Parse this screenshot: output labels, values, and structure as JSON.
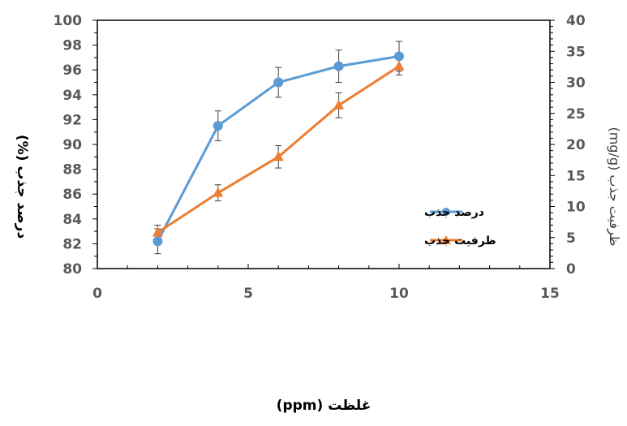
{
  "chart_data": {
    "type": "line",
    "title": "",
    "xlabel": "غلظت (ppm)",
    "ylabel": "درصد جذب (%)",
    "y2label": "ظرفیت جذب (mg/g)",
    "xlim": [
      0,
      15
    ],
    "ylim": [
      80,
      100
    ],
    "y2lim": [
      0,
      40
    ],
    "x_ticks": [
      "0",
      "5",
      "10",
      "15"
    ],
    "y_ticks": [
      "80",
      "82",
      "84",
      "86",
      "88",
      "90",
      "92",
      "94",
      "96",
      "98",
      "100"
    ],
    "y2_ticks": [
      "0",
      "5",
      "10",
      "15",
      "20",
      "25",
      "30",
      "35",
      "40"
    ],
    "grid": false,
    "legend_position": "center-right",
    "series": [
      {
        "name": "درصد جذب",
        "axis": "left",
        "marker": "circle",
        "color": "#5B9BD5",
        "x": [
          2,
          4,
          6,
          8,
          10
        ],
        "y": [
          82.2,
          91.5,
          95.0,
          96.3,
          97.1
        ],
        "error": [
          1.0,
          1.2,
          1.2,
          1.3,
          1.2
        ]
      },
      {
        "name": "ظرفیت جذب",
        "axis": "right",
        "marker": "triangle",
        "color": "#ED7D31",
        "x": [
          2,
          4,
          6,
          8,
          10
        ],
        "y": [
          5.8,
          12.2,
          18.0,
          26.3,
          32.6
        ],
        "error": [
          1.2,
          1.3,
          1.8,
          2.0,
          1.4
        ]
      }
    ]
  }
}
